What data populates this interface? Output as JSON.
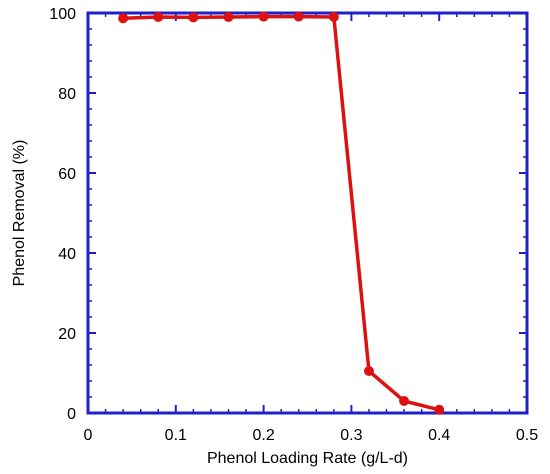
{
  "chart_data": {
    "type": "line",
    "title": "",
    "xlabel": "Phenol Loading Rate (g/L-d)",
    "ylabel": "Phenol Removal (%)",
    "xlim": [
      0,
      0.5
    ],
    "ylim": [
      0,
      100
    ],
    "x_ticks": [
      0,
      0.1,
      0.2,
      0.3,
      0.4,
      0.5
    ],
    "x_tick_labels": [
      "0",
      "0.1",
      "0.2",
      "0.3",
      "0.4",
      "0.5"
    ],
    "y_ticks": [
      0,
      20,
      40,
      60,
      80,
      100
    ],
    "y_tick_labels": [
      "0",
      "20",
      "40",
      "60",
      "80",
      "100"
    ],
    "grid": false,
    "legend": "none",
    "axis_color": "#1f1fcc",
    "series": [
      {
        "color": "#dd1111",
        "x": [
          0.04,
          0.08,
          0.12,
          0.16,
          0.2,
          0.24,
          0.28,
          0.32,
          0.36,
          0.4
        ],
        "y": [
          98.7,
          99.0,
          98.9,
          99.0,
          99.1,
          99.1,
          99.0,
          10.5,
          3.0,
          0.8
        ]
      }
    ]
  }
}
